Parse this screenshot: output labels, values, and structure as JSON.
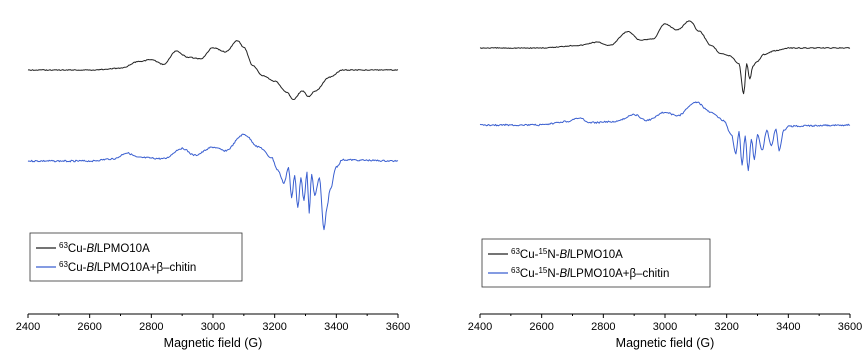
{
  "chart_data": [
    {
      "type": "line",
      "xlabel": "Magnetic field (G)",
      "ylabel": "",
      "xlim": [
        2400,
        3600
      ],
      "xticks": [
        2400,
        2600,
        2800,
        3000,
        3200,
        3400,
        3600
      ],
      "grid": false,
      "legend_position": "bottom-left",
      "series": [
        {
          "name": "63Cu-BlLPMO10A",
          "color": "#222222",
          "points": [
            [
              2400,
              0.0
            ],
            [
              2600,
              0.0
            ],
            [
              2700,
              0.12
            ],
            [
              2760,
              0.6
            ],
            [
              2800,
              0.75
            ],
            [
              2840,
              0.4
            ],
            [
              2880,
              1.35
            ],
            [
              2920,
              0.9
            ],
            [
              2960,
              0.8
            ],
            [
              3000,
              1.6
            ],
            [
              3040,
              1.3
            ],
            [
              3080,
              2.1
            ],
            [
              3100,
              1.6
            ],
            [
              3130,
              0.3
            ],
            [
              3160,
              -0.4
            ],
            [
              3200,
              -0.8
            ],
            [
              3240,
              -1.6
            ],
            [
              3260,
              -2.1
            ],
            [
              3290,
              -1.5
            ],
            [
              3310,
              -1.9
            ],
            [
              3330,
              -1.5
            ],
            [
              3380,
              -0.5
            ],
            [
              3420,
              0.0
            ],
            [
              3600,
              0.0
            ]
          ]
        },
        {
          "name": "63Cu-BlLPMO10A+β–chitin",
          "color": "#3a5fd0",
          "points": [
            [
              2400,
              0.0
            ],
            [
              2600,
              0.0
            ],
            [
              2680,
              0.2
            ],
            [
              2720,
              0.7
            ],
            [
              2760,
              0.3
            ],
            [
              2840,
              0.2
            ],
            [
              2900,
              1.1
            ],
            [
              2940,
              0.5
            ],
            [
              3000,
              1.2
            ],
            [
              3040,
              0.9
            ],
            [
              3100,
              2.3
            ],
            [
              3150,
              1.2
            ],
            [
              3190,
              0.3
            ],
            [
              3210,
              -0.8
            ],
            [
              3230,
              -1.9
            ],
            [
              3245,
              -0.6
            ],
            [
              3255,
              -3.2
            ],
            [
              3265,
              -1.2
            ],
            [
              3275,
              -4.1
            ],
            [
              3285,
              -1.5
            ],
            [
              3295,
              -3.4
            ],
            [
              3305,
              -1.0
            ],
            [
              3312,
              -4.5
            ],
            [
              3320,
              -1.2
            ],
            [
              3330,
              -3.0
            ],
            [
              3345,
              -1.5
            ],
            [
              3360,
              -6.0
            ],
            [
              3370,
              -4.0
            ],
            [
              3380,
              -2.5
            ],
            [
              3400,
              -0.5
            ],
            [
              3420,
              0.1
            ],
            [
              3600,
              0.0
            ]
          ]
        }
      ]
    },
    {
      "type": "line",
      "xlabel": "Magnetic field (G)",
      "ylabel": "",
      "xlim": [
        2400,
        3600
      ],
      "xticks": [
        2400,
        2600,
        2800,
        3000,
        3200,
        3400,
        3600
      ],
      "grid": false,
      "legend_position": "bottom-left",
      "series": [
        {
          "name": "63Cu-15N-BlLPMO10A",
          "color": "#222222",
          "points": [
            [
              2400,
              0.0
            ],
            [
              2600,
              0.0
            ],
            [
              2720,
              0.2
            ],
            [
              2780,
              0.45
            ],
            [
              2820,
              0.2
            ],
            [
              2880,
              1.25
            ],
            [
              2920,
              0.6
            ],
            [
              2960,
              0.7
            ],
            [
              3000,
              1.85
            ],
            [
              3040,
              1.4
            ],
            [
              3080,
              2.1
            ],
            [
              3110,
              1.3
            ],
            [
              3150,
              0.2
            ],
            [
              3180,
              -0.4
            ],
            [
              3210,
              -0.6
            ],
            [
              3240,
              -1.2
            ],
            [
              3255,
              -3.5
            ],
            [
              3265,
              -1.2
            ],
            [
              3275,
              -2.4
            ],
            [
              3285,
              -1.4
            ],
            [
              3300,
              -1.0
            ],
            [
              3320,
              -0.5
            ],
            [
              3360,
              -0.2
            ],
            [
              3400,
              0.0
            ],
            [
              3600,
              0.0
            ]
          ]
        },
        {
          "name": "63Cu-15N-BlLPMO10A+β–chitin",
          "color": "#3a5fd0",
          "points": [
            [
              2400,
              0.0
            ],
            [
              2600,
              0.0
            ],
            [
              2680,
              0.3
            ],
            [
              2720,
              0.6
            ],
            [
              2760,
              0.2
            ],
            [
              2840,
              0.3
            ],
            [
              2900,
              0.9
            ],
            [
              2940,
              0.4
            ],
            [
              3000,
              1.1
            ],
            [
              3040,
              0.8
            ],
            [
              3100,
              2.0
            ],
            [
              3150,
              1.1
            ],
            [
              3190,
              0.4
            ],
            [
              3215,
              -0.8
            ],
            [
              3230,
              -2.5
            ],
            [
              3240,
              -0.6
            ],
            [
              3250,
              -3.5
            ],
            [
              3260,
              -1.0
            ],
            [
              3270,
              -4.0
            ],
            [
              3280,
              -1.2
            ],
            [
              3290,
              -3.0
            ],
            [
              3300,
              -0.8
            ],
            [
              3315,
              -2.2
            ],
            [
              3330,
              -0.5
            ],
            [
              3345,
              -1.8
            ],
            [
              3360,
              -0.3
            ],
            [
              3370,
              -2.2
            ],
            [
              3385,
              -0.5
            ],
            [
              3400,
              -0.1
            ],
            [
              3600,
              0.0
            ]
          ]
        }
      ]
    }
  ]
}
